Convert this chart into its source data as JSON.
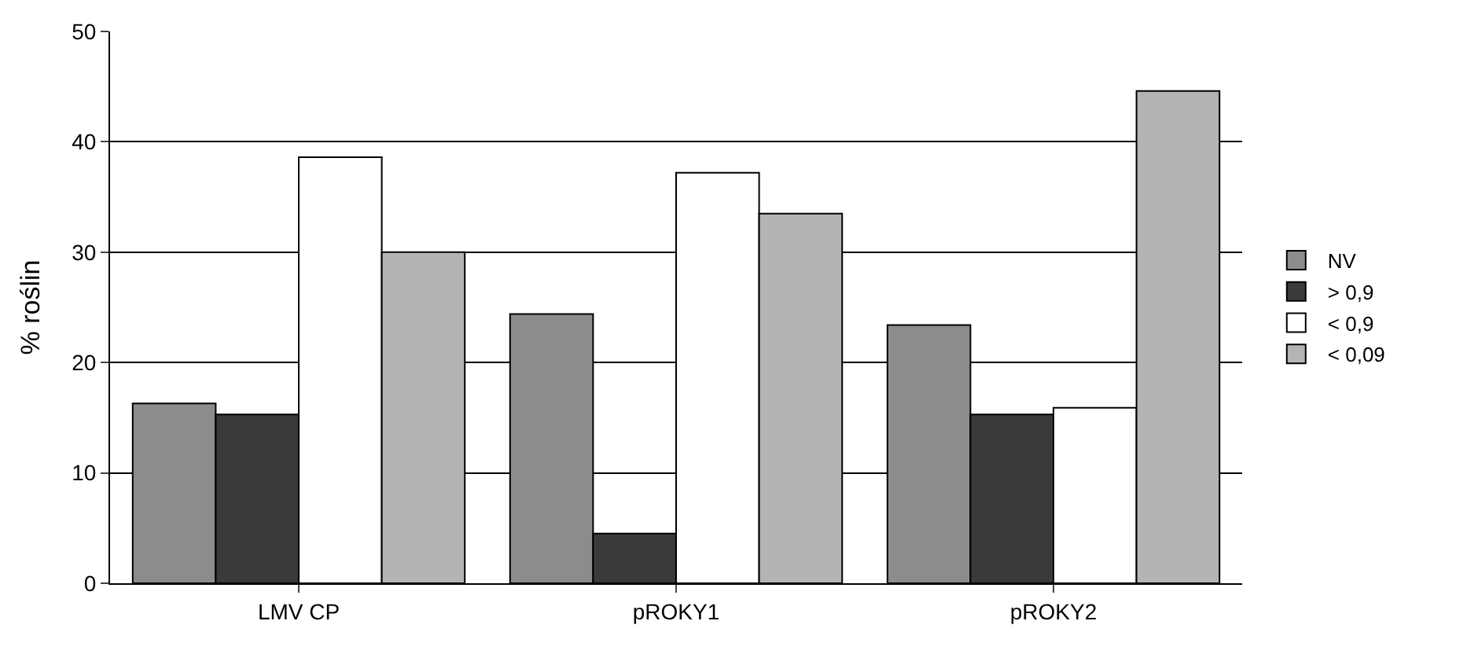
{
  "chart_data": {
    "type": "bar",
    "ylabel": "% roślin",
    "categories": [
      "LMV CP",
      "pROKY1",
      "pROKY2"
    ],
    "series": [
      {
        "name": "NV",
        "color": "#8c8c8c",
        "values": [
          16.3,
          24.4,
          23.4
        ]
      },
      {
        "name": "> 0,9",
        "color": "#3a3a3a",
        "values": [
          15.3,
          4.5,
          15.3
        ]
      },
      {
        "name": "< 0,9",
        "color": "#ffffff",
        "values": [
          38.6,
          37.2,
          15.9
        ]
      },
      {
        "name": "< 0,09",
        "color": "#b4b4b4",
        "values": [
          30.0,
          33.5,
          44.6
        ]
      }
    ],
    "ylim": [
      0,
      50
    ],
    "yticks": [
      0,
      10,
      20,
      30,
      40,
      50
    ],
    "grid": "y",
    "legend": "right"
  }
}
